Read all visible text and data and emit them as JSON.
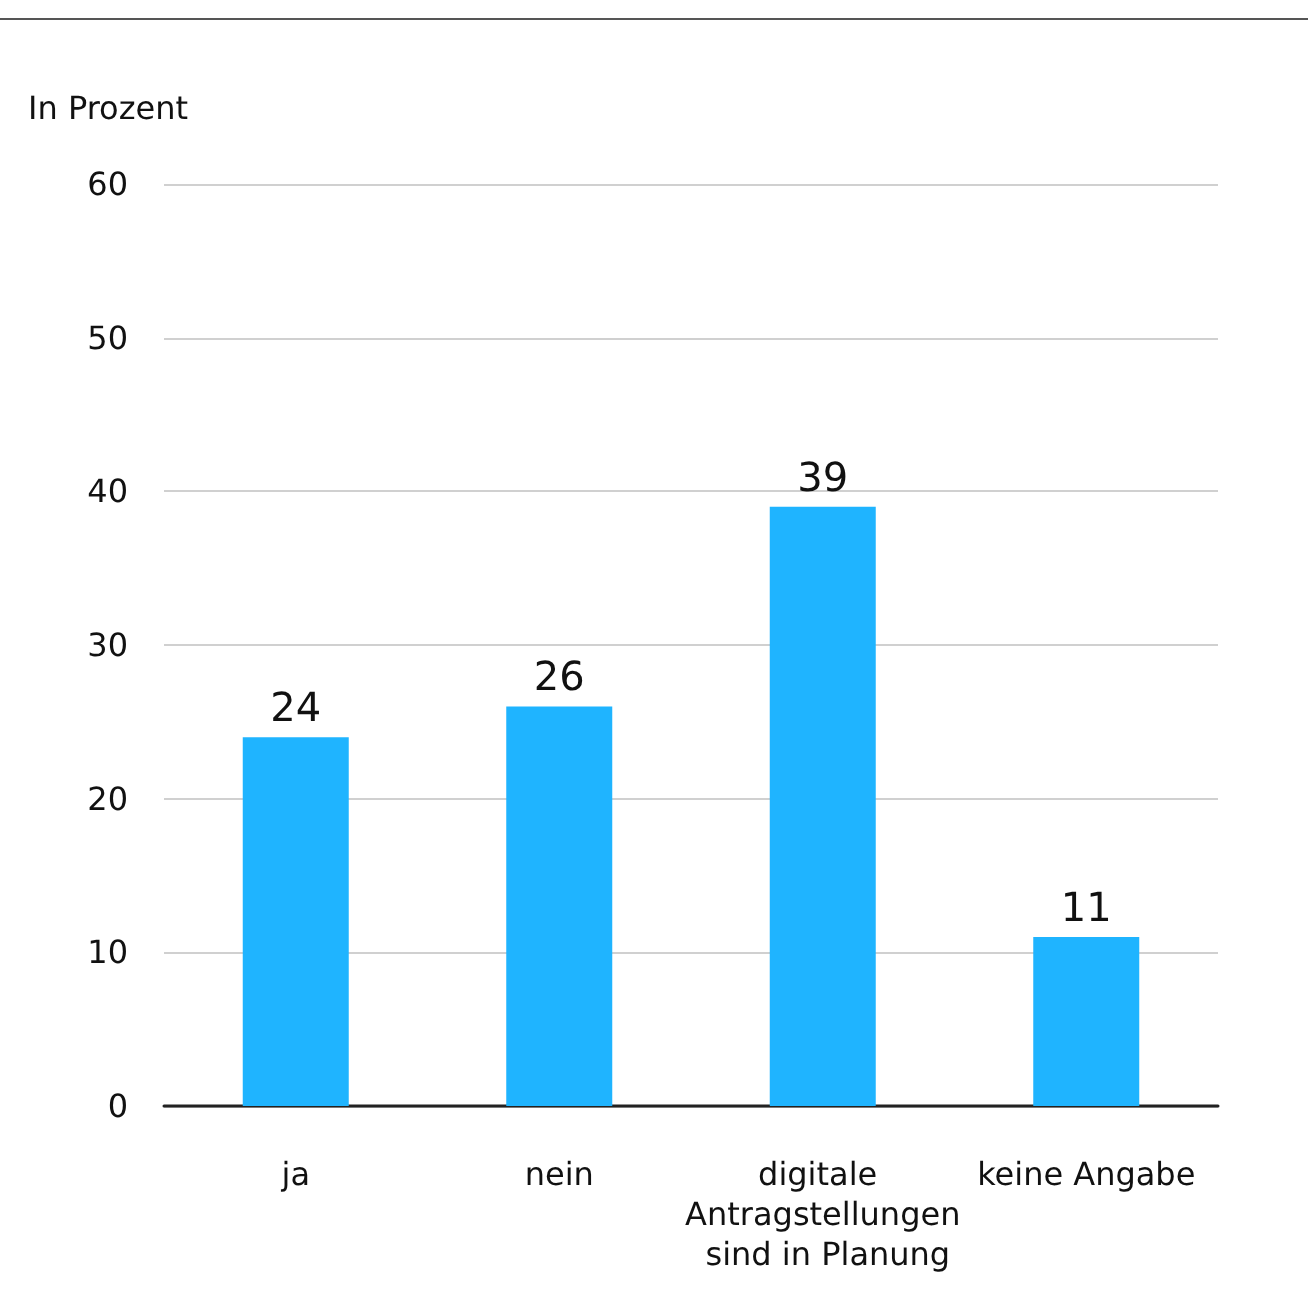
{
  "chart_data": {
    "type": "bar",
    "ylabel": "In Prozent",
    "categories": [
      "ja",
      "nein",
      "digitale Antragstellungen sind in Planung",
      "keine Angabe"
    ],
    "values": [
      24,
      26,
      39,
      11
    ],
    "color": "#1fb4ff",
    "ylim": [
      0,
      60
    ],
    "yticks": [
      0,
      10,
      20,
      30,
      40,
      50,
      60
    ],
    "grid": "y",
    "data_labels": true
  }
}
